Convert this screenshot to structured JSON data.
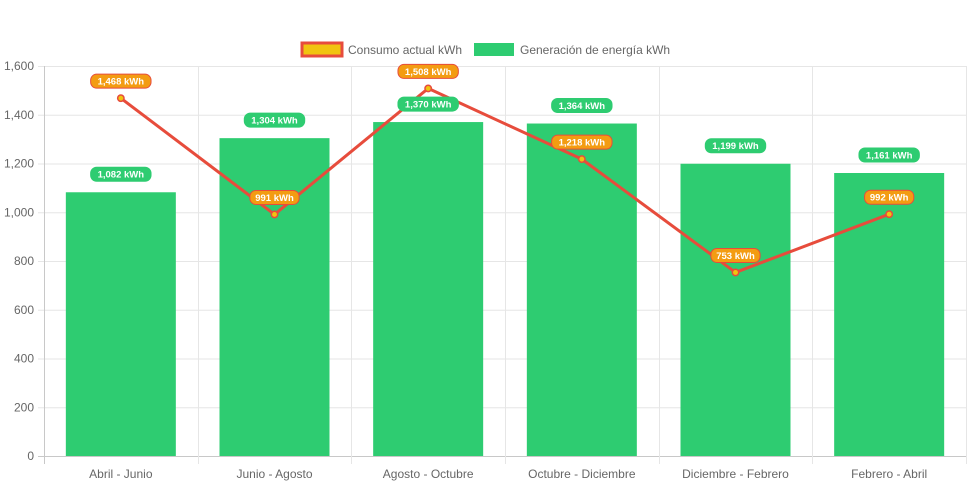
{
  "chart_data": {
    "type": "bar",
    "categories": [
      "Abril - Junio",
      "Junio - Agosto",
      "Agosto - Octubre",
      "Octubre - Diciembre",
      "Diciembre - Febrero",
      "Febrero - Abril"
    ],
    "series": [
      {
        "name": "Consumo actual kWh",
        "type": "line",
        "values": [
          1468,
          991,
          1508,
          1218,
          753,
          992
        ],
        "labels": [
          "1,468 kWh",
          "991 kWh",
          "1,508 kWh",
          "1,218 kWh",
          "753 kWh",
          "992 kWh"
        ],
        "color": "#e74c3c",
        "fill_color": "#f1c40f",
        "badge_color": "#f39c12"
      },
      {
        "name": "Generación de energía kWh",
        "type": "bar",
        "values": [
          1082,
          1304,
          1370,
          1364,
          1199,
          1161
        ],
        "labels": [
          "1,082 kWh",
          "1,304 kWh",
          "1,370 kWh",
          "1,364 kWh",
          "1,199 kWh",
          "1,161 kWh"
        ],
        "color": "#2ecc71"
      }
    ],
    "ylim": [
      0,
      1600
    ],
    "yticks": [
      0,
      200,
      400,
      600,
      800,
      1000,
      1200,
      1400,
      1600
    ],
    "ytick_labels": [
      "0",
      "200",
      "400",
      "600",
      "800",
      "1,000",
      "1,200",
      "1,400",
      "1,600"
    ],
    "legend_position": "top-center",
    "grid": true,
    "title": "",
    "xlabel": "",
    "ylabel": ""
  }
}
